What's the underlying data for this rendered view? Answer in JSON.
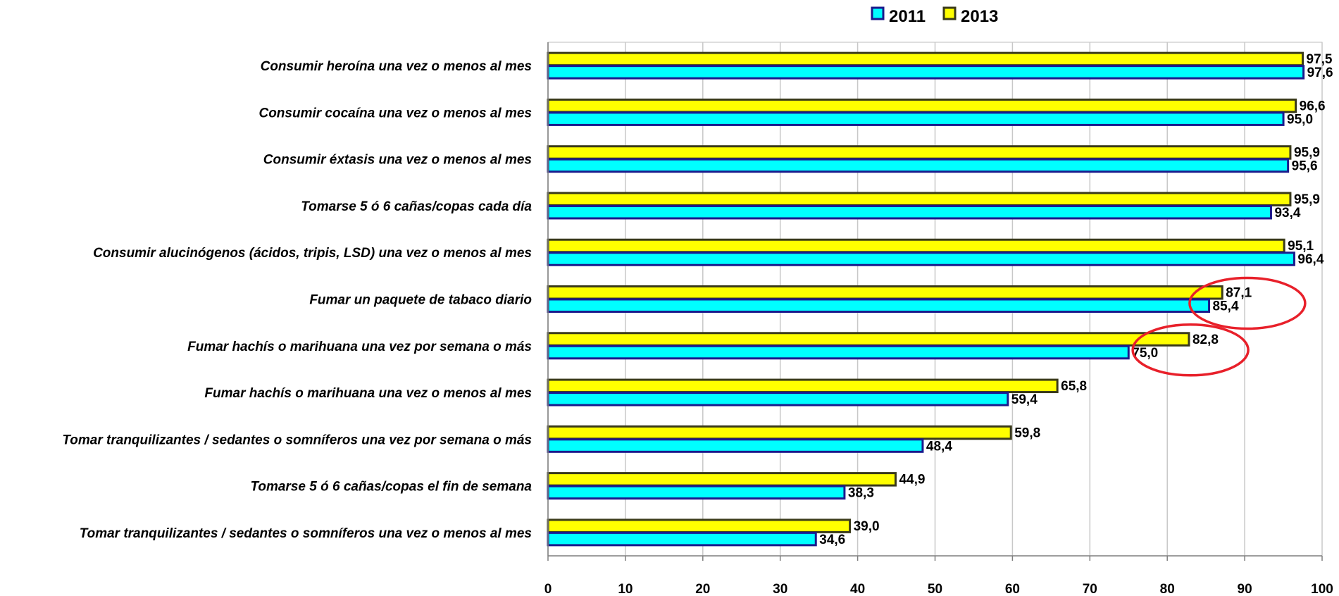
{
  "chart_data": {
    "type": "bar",
    "orientation": "horizontal",
    "title": "",
    "xlabel": "",
    "ylabel": "",
    "xlim": [
      0,
      100
    ],
    "x_ticks": [
      "0",
      "10",
      "20",
      "30",
      "40",
      "50",
      "60",
      "70",
      "80",
      "90",
      "100"
    ],
    "grid": true,
    "legend_position": "top",
    "categories": [
      "Consumir heroína una vez o menos al mes",
      "Consumir cocaína una vez o menos al mes",
      "Consumir éxtasis una vez o menos al mes",
      "Tomarse 5 ó 6 cañas/copas cada día",
      "Consumir alucinógenos (ácidos, tripis, LSD) una vez o menos al mes",
      "Fumar un paquete de tabaco diario",
      "Fumar hachís o marihuana una vez por semana o más",
      "Fumar hachís o marihuana una vez o menos al mes",
      "Tomar tranquilizantes / sedantes o somníferos una vez por semana o más",
      "Tomarse 5 ó 6 cañas/copas el fin de semana",
      "Tomar tranquilizantes / sedantes o somníferos una vez o menos al mes"
    ],
    "series": [
      {
        "name": "2013",
        "color": "#FFFF00",
        "border": "#3A3A1A",
        "values": [
          97.5,
          96.6,
          95.9,
          95.9,
          95.1,
          87.1,
          82.8,
          65.8,
          59.8,
          44.9,
          39.0
        ],
        "labels": [
          "97,5",
          "96,6",
          "95,9",
          "95,9",
          "95,1",
          "87,1",
          "82,8",
          "65,8",
          "59,8",
          "44,9",
          "39,0"
        ]
      },
      {
        "name": "2011",
        "color": "#00FFFF",
        "border": "#1A1A8C",
        "values": [
          97.6,
          95.0,
          95.6,
          93.4,
          96.4,
          85.4,
          75.0,
          59.4,
          48.4,
          38.3,
          34.6
        ],
        "labels": [
          "97,6",
          "95,0",
          "95,6",
          "93,4",
          "96,4",
          "85,4",
          "75,0",
          "59,4",
          "48,4",
          "38,3",
          "34,6"
        ]
      }
    ],
    "legend_order": [
      "2011",
      "2013"
    ],
    "annotations": {
      "highlight_color": "#E8202A",
      "highlighted_categories": [
        "Fumar un paquete de tabaco diario",
        "Fumar hachís o marihuana una vez por semana o más"
      ]
    }
  }
}
